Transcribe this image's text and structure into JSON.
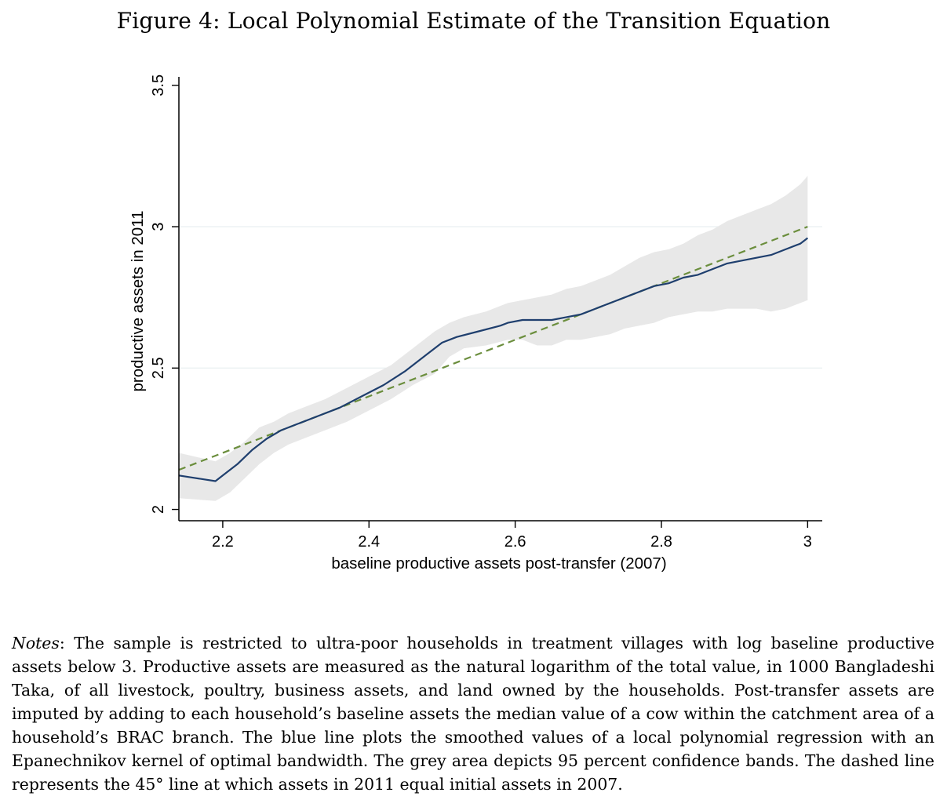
{
  "figure": {
    "title": "Figure 4: Local Polynomial Estimate of the Transition Equation"
  },
  "chart_data": {
    "type": "line",
    "xlabel": "baseline productive assets post-transfer (2007)",
    "ylabel": "productive assets in 2011",
    "xlim": [
      2.14,
      3.02
    ],
    "ylim": [
      1.96,
      3.53
    ],
    "xticks": [
      2.2,
      2.4,
      2.6,
      2.8,
      3
    ],
    "xtick_labels": [
      "2.2",
      "2.4",
      "2.6",
      "2.8",
      "3"
    ],
    "yticks": [
      2,
      2.5,
      3,
      3.5
    ],
    "ytick_labels": [
      "2",
      "2.5",
      "3",
      "3.5"
    ],
    "grid": "horizontal",
    "legend": "none",
    "colors": {
      "fit": "#1f3f6e",
      "band": "#e8e8e8",
      "diagonal": "#6b8e3d",
      "grid": "#eaf0f2"
    },
    "series": [
      {
        "kind": "fit",
        "x": [
          2.14,
          2.19,
          2.2,
          2.22,
          2.24,
          2.26,
          2.28,
          2.3,
          2.33,
          2.36,
          2.39,
          2.42,
          2.45,
          2.48,
          2.5,
          2.52,
          2.55,
          2.58,
          2.59,
          2.61,
          2.63,
          2.65,
          2.67,
          2.69,
          2.71,
          2.73,
          2.75,
          2.77,
          2.79,
          2.81,
          2.83,
          2.85,
          2.87,
          2.89,
          2.91,
          2.93,
          2.95,
          2.97,
          2.99,
          3.0
        ],
        "y": [
          2.12,
          2.1,
          2.12,
          2.16,
          2.21,
          2.25,
          2.28,
          2.3,
          2.33,
          2.36,
          2.4,
          2.44,
          2.49,
          2.55,
          2.59,
          2.61,
          2.63,
          2.65,
          2.66,
          2.67,
          2.67,
          2.67,
          2.68,
          2.69,
          2.71,
          2.73,
          2.75,
          2.77,
          2.79,
          2.8,
          2.82,
          2.83,
          2.85,
          2.87,
          2.88,
          2.89,
          2.9,
          2.92,
          2.94,
          2.96
        ]
      },
      {
        "kind": "ci_upper",
        "x": [
          2.14,
          2.19,
          2.21,
          2.23,
          2.25,
          2.27,
          2.29,
          2.31,
          2.34,
          2.37,
          2.4,
          2.43,
          2.46,
          2.49,
          2.51,
          2.53,
          2.56,
          2.59,
          2.61,
          2.63,
          2.65,
          2.67,
          2.69,
          2.71,
          2.73,
          2.75,
          2.77,
          2.79,
          2.81,
          2.83,
          2.85,
          2.87,
          2.89,
          2.91,
          2.93,
          2.95,
          2.97,
          2.99,
          3.0
        ],
        "y": [
          2.2,
          2.17,
          2.2,
          2.24,
          2.29,
          2.31,
          2.34,
          2.36,
          2.39,
          2.43,
          2.47,
          2.51,
          2.57,
          2.63,
          2.66,
          2.68,
          2.7,
          2.73,
          2.74,
          2.75,
          2.76,
          2.78,
          2.79,
          2.81,
          2.83,
          2.86,
          2.89,
          2.91,
          2.92,
          2.94,
          2.97,
          2.99,
          3.02,
          3.04,
          3.06,
          3.08,
          3.11,
          3.15,
          3.18
        ]
      },
      {
        "kind": "ci_lower",
        "x": [
          2.14,
          2.19,
          2.21,
          2.23,
          2.25,
          2.27,
          2.29,
          2.31,
          2.34,
          2.37,
          2.4,
          2.43,
          2.46,
          2.49,
          2.51,
          2.53,
          2.56,
          2.59,
          2.61,
          2.63,
          2.65,
          2.67,
          2.69,
          2.71,
          2.73,
          2.75,
          2.77,
          2.79,
          2.81,
          2.83,
          2.85,
          2.87,
          2.89,
          2.91,
          2.93,
          2.95,
          2.97,
          2.99,
          3.0
        ],
        "y": [
          2.04,
          2.03,
          2.06,
          2.11,
          2.16,
          2.2,
          2.23,
          2.25,
          2.28,
          2.31,
          2.35,
          2.39,
          2.44,
          2.48,
          2.54,
          2.57,
          2.58,
          2.6,
          2.6,
          2.58,
          2.58,
          2.6,
          2.6,
          2.61,
          2.62,
          2.64,
          2.65,
          2.66,
          2.68,
          2.69,
          2.7,
          2.7,
          2.71,
          2.71,
          2.71,
          2.7,
          2.71,
          2.73,
          2.74
        ]
      },
      {
        "kind": "diagonal",
        "x": [
          2.14,
          3.0
        ],
        "y": [
          2.14,
          3.0
        ]
      }
    ]
  },
  "notes": {
    "label": "Notes",
    "text": ": The sample is restricted to ultra-poor households in treatment villages with log baseline productive assets below 3. Productive assets are measured as the natural logarithm of the total value, in 1000 Bangladeshi Taka, of all livestock, poultry, business assets, and land owned by the households. Post-transfer assets are imputed by adding to each household’s baseline assets the median value of a cow within the catchment area of a household’s BRAC branch. The blue line plots the smoothed values of a local polynomial regression with an Epanechnikov kernel of optimal bandwidth. The grey area depicts 95 percent confidence bands. The dashed line represents the 45° line at which assets in 2011 equal initial assets in 2007."
  }
}
